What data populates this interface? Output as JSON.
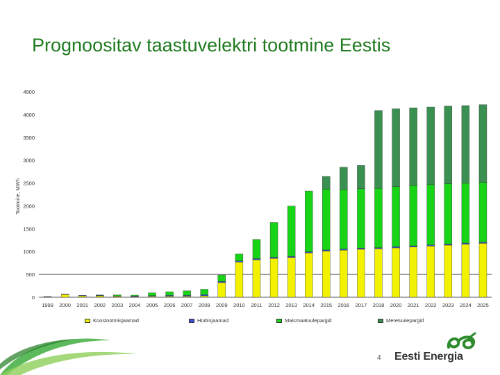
{
  "title": "Prognoositav taastuvelektri tootmine Eestis",
  "page_number": "4",
  "brand": {
    "name": "Eesti Energia",
    "logo_icon": "ee-logo-icon",
    "accent": "#2e8b2e"
  },
  "chart_data": {
    "type": "bar",
    "stacked": true,
    "title": "",
    "ylabel": "Tootmine, MWh",
    "xlabel": "",
    "ylim": [
      0,
      4500
    ],
    "yticks": [
      0,
      500,
      1000,
      1500,
      2000,
      2500,
      3000,
      3500,
      4000,
      4500
    ],
    "grid": false,
    "reference_line": 500,
    "legend_position": "bottom",
    "categories": [
      "1999",
      "2000",
      "2001",
      "2002",
      "2003",
      "2004",
      "2005",
      "2006",
      "2007",
      "2008",
      "2009",
      "2010",
      "2011",
      "2012",
      "2013",
      "2014",
      "2015",
      "2016",
      "2017",
      "2018",
      "2020",
      "2021",
      "2022",
      "2023",
      "2024",
      "2025"
    ],
    "series": [
      {
        "name": "Koostootmisjaamad",
        "color": "#f2f200",
        "values": [
          5,
          60,
          30,
          30,
          20,
          10,
          20,
          20,
          20,
          30,
          320,
          770,
          820,
          850,
          870,
          970,
          1010,
          1030,
          1050,
          1060,
          1080,
          1100,
          1120,
          1140,
          1160,
          1180
        ]
      },
      {
        "name": "Hüdrojaamad",
        "color": "#3b4fd6",
        "values": [
          10,
          10,
          10,
          10,
          10,
          15,
          15,
          20,
          20,
          25,
          25,
          25,
          25,
          25,
          25,
          25,
          25,
          25,
          25,
          25,
          25,
          25,
          25,
          25,
          25,
          25
        ]
      },
      {
        "name": "Maismaatuulepargid",
        "color": "#17d417",
        "values": [
          0,
          0,
          0,
          10,
          20,
          20,
          60,
          80,
          100,
          120,
          140,
          150,
          420,
          760,
          1100,
          1330,
          1330,
          1300,
          1300,
          1300,
          1320,
          1320,
          1320,
          1320,
          1310,
          1310
        ]
      },
      {
        "name": "Meretuulepargid",
        "color": "#3a9050",
        "values": [
          0,
          0,
          0,
          0,
          0,
          0,
          0,
          0,
          0,
          0,
          0,
          0,
          0,
          0,
          0,
          0,
          280,
          490,
          510,
          1700,
          1700,
          1700,
          1700,
          1700,
          1700,
          1700
        ]
      }
    ]
  }
}
